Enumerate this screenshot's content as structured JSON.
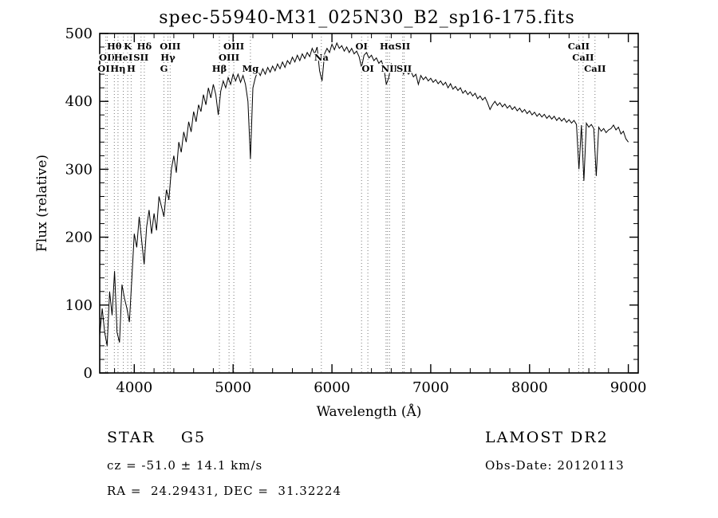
{
  "title": "spec-55940-M31_025N30_B2_sp16-175.fits",
  "chart_data": {
    "type": "line",
    "title": "spec-55940-M31_025N30_B2_sp16-175.fits",
    "xlabel": "Wavelength (Å)",
    "ylabel": "Flux (relative)",
    "xlim": [
      3650,
      9100
    ],
    "ylim": [
      0,
      500
    ],
    "x_ticks": [
      4000,
      5000,
      6000,
      7000,
      8000,
      9000
    ],
    "y_ticks": [
      0,
      100,
      200,
      300,
      400,
      500
    ],
    "grid": false,
    "legend": "none",
    "x_unit": "Angstrom",
    "x_start": 3650,
    "x_step": 25,
    "flux": [
      55,
      95,
      60,
      40,
      120,
      85,
      150,
      60,
      45,
      130,
      110,
      95,
      75,
      140,
      205,
      185,
      230,
      195,
      160,
      215,
      240,
      205,
      235,
      210,
      260,
      245,
      230,
      270,
      255,
      300,
      320,
      295,
      340,
      325,
      355,
      340,
      370,
      355,
      385,
      370,
      395,
      385,
      410,
      395,
      420,
      405,
      425,
      410,
      380,
      415,
      430,
      420,
      435,
      425,
      440,
      430,
      440,
      428,
      438,
      425,
      400,
      315,
      420,
      435,
      445,
      438,
      448,
      440,
      450,
      443,
      452,
      445,
      455,
      448,
      458,
      450,
      460,
      455,
      465,
      458,
      468,
      460,
      470,
      463,
      472,
      466,
      478,
      470,
      480,
      445,
      430,
      470,
      478,
      472,
      484,
      476,
      486,
      478,
      482,
      474,
      480,
      472,
      478,
      470,
      474,
      466,
      450,
      468,
      472,
      464,
      468,
      460,
      464,
      456,
      460,
      450,
      425,
      435,
      455,
      448,
      452,
      444,
      448,
      440,
      446,
      440,
      444,
      436,
      440,
      425,
      438,
      432,
      436,
      430,
      434,
      428,
      432,
      426,
      430,
      424,
      428,
      420,
      426,
      418,
      422,
      416,
      420,
      412,
      416,
      410,
      414,
      408,
      412,
      404,
      408,
      402,
      406,
      398,
      388,
      395,
      400,
      394,
      398,
      392,
      396,
      390,
      394,
      388,
      392,
      386,
      390,
      384,
      388,
      382,
      386,
      380,
      384,
      378,
      382,
      377,
      381,
      375,
      379,
      374,
      378,
      372,
      376,
      371,
      375,
      369,
      373,
      368,
      372,
      366,
      300,
      365,
      283,
      368,
      362,
      366,
      360,
      290,
      362,
      356,
      360,
      354,
      358,
      360,
      365,
      358,
      362,
      352,
      356,
      345,
      340
    ],
    "spectral_lines": {
      "dotted_wavelengths": [
        3712,
        3727,
        3798,
        3835,
        3889,
        3933,
        3968,
        4068,
        4101,
        4300,
        4340,
        4363,
        4861,
        4959,
        5007,
        5175,
        5893,
        6300,
        6364,
        6548,
        6563,
        6583,
        6716,
        6731,
        8498,
        8542,
        8662
      ],
      "labels": [
        {
          "text": "Hθ",
          "wavelength": 3798,
          "row": 0
        },
        {
          "text": "K",
          "wavelength": 3933,
          "row": 0
        },
        {
          "text": "Hδ",
          "wavelength": 4101,
          "row": 0
        },
        {
          "text": "OII",
          "wavelength": 3727,
          "row": 1
        },
        {
          "text": "HeI",
          "wavelength": 3889,
          "row": 1
        },
        {
          "text": "SII",
          "wavelength": 4068,
          "row": 1
        },
        {
          "text": "OII",
          "wavelength": 3712,
          "row": 2
        },
        {
          "text": "Hη",
          "wavelength": 3835,
          "row": 2
        },
        {
          "text": "H",
          "wavelength": 3968,
          "row": 2
        },
        {
          "text": "OIII",
          "wavelength": 4363,
          "row": 0
        },
        {
          "text": "Hγ",
          "wavelength": 4340,
          "row": 1
        },
        {
          "text": "G",
          "wavelength": 4300,
          "row": 2
        },
        {
          "text": "OIII",
          "wavelength": 5007,
          "row": 0
        },
        {
          "text": "OIII",
          "wavelength": 4959,
          "row": 1
        },
        {
          "text": "Hβ",
          "wavelength": 4861,
          "row": 2
        },
        {
          "text": "Mg",
          "wavelength": 5175,
          "row": 2
        },
        {
          "text": "Na",
          "wavelength": 5893,
          "row": 1
        },
        {
          "text": "OI",
          "wavelength": 6300,
          "row": 0
        },
        {
          "text": "OI",
          "wavelength": 6364,
          "row": 2
        },
        {
          "text": "Hα",
          "wavelength": 6563,
          "row": 0
        },
        {
          "text": "SII",
          "wavelength": 6716,
          "row": 0
        },
        {
          "text": "NII",
          "wavelength": 6583,
          "row": 2
        },
        {
          "text": "SII",
          "wavelength": 6731,
          "row": 2
        },
        {
          "text": "CaII",
          "wavelength": 8498,
          "row": 0
        },
        {
          "text": "CaII",
          "wavelength": 8542,
          "row": 1
        },
        {
          "text": "CaII",
          "wavelength": 8662,
          "row": 2
        }
      ]
    }
  },
  "footer": {
    "class_label": "STAR    G5",
    "survey": "LAMOST DR2",
    "cz": "cz = -51.0 ± 14.1 km/s",
    "obs_date": "Obs-Date: 20120113",
    "coords": "RA =  24.29431, DEC =  31.32224"
  },
  "colors": {
    "trace": "#000000",
    "marker_line": "#777777",
    "background": "#ffffff"
  }
}
